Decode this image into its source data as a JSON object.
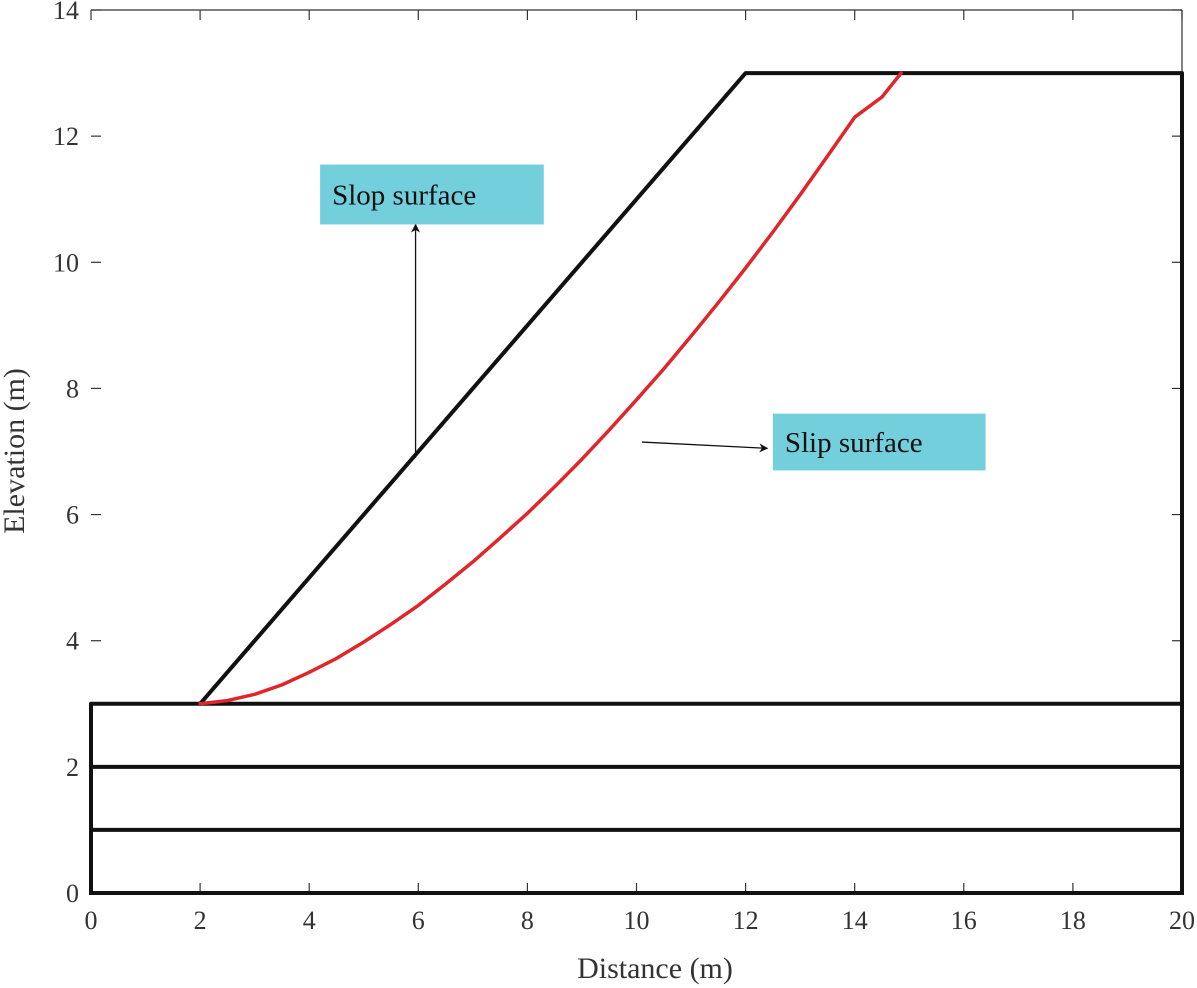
{
  "chart_data": {
    "type": "line",
    "xlabel": "Distance (m)",
    "ylabel": "Elevation (m)",
    "xlim": [
      0,
      20
    ],
    "ylim": [
      0,
      14
    ],
    "xticks": [
      0,
      2,
      4,
      6,
      8,
      10,
      12,
      14,
      16,
      18,
      20
    ],
    "yticks": [
      0,
      2,
      4,
      6,
      8,
      10,
      12,
      14
    ],
    "grid": false,
    "colors": {
      "boundary": "#111111",
      "slip": "#e0262b",
      "label_bg": "#74cfdc",
      "text": "#333333"
    },
    "series": [
      {
        "key": "slope",
        "x": [
          2,
          12,
          20
        ],
        "y": [
          3,
          13,
          13
        ]
      },
      {
        "key": "layer1",
        "x": [
          0,
          20
        ],
        "y": [
          3,
          3
        ]
      },
      {
        "key": "layer2",
        "x": [
          0,
          20
        ],
        "y": [
          2,
          2
        ]
      },
      {
        "key": "layer3",
        "x": [
          0,
          20
        ],
        "y": [
          1,
          1
        ]
      },
      {
        "key": "slip",
        "x": [
          2.0,
          2.5,
          3.0,
          3.5,
          4.0,
          4.5,
          5.0,
          5.5,
          6.0,
          6.5,
          7.0,
          7.5,
          8.0,
          8.5,
          9.0,
          9.5,
          10.0,
          10.5,
          11.0,
          11.5,
          12.0,
          12.5,
          13.0,
          13.5,
          14.0,
          14.5,
          14.85
        ],
        "y": [
          3.0,
          3.05,
          3.15,
          3.3,
          3.5,
          3.72,
          3.98,
          4.26,
          4.56,
          4.9,
          5.25,
          5.63,
          6.02,
          6.44,
          6.88,
          7.34,
          7.82,
          8.31,
          8.83,
          9.36,
          9.91,
          10.48,
          11.07,
          11.68,
          12.3,
          12.62,
          13.0
        ]
      }
    ],
    "annotations": [
      {
        "text": "Slop surface",
        "box": [
          4.2,
          10.6,
          8.3,
          11.55
        ],
        "arrow_from": [
          5.95,
          6.9
        ],
        "arrow_to": [
          5.95,
          10.6
        ]
      },
      {
        "text": "Slip surface",
        "box": [
          12.5,
          6.7,
          16.4,
          7.6
        ],
        "arrow_from": [
          10.1,
          7.15
        ],
        "arrow_to": [
          12.4,
          7.05
        ]
      }
    ]
  }
}
